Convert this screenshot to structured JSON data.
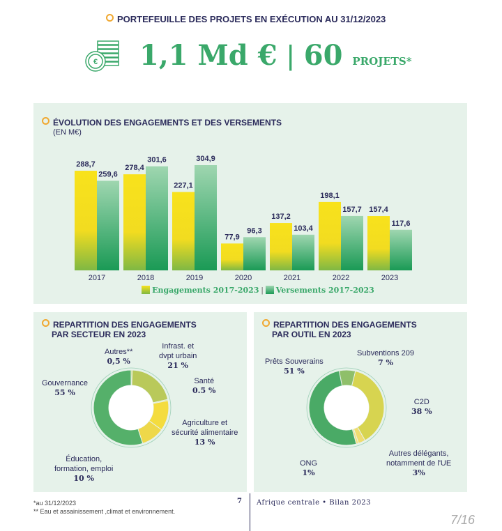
{
  "header": {
    "title": "PORTEFEUILLE DES PROJETS EN EXÉCUTION AU 31/12/2023",
    "amount": "1,1 Md €",
    "separator": "|",
    "count": "60",
    "count_unit": "PROJETS*"
  },
  "colors": {
    "green": "#3aa86a",
    "yellow": "#f5dd1e",
    "navy": "#2a2a5a",
    "accent": "#f0a830",
    "panel": "#e6f2ea"
  },
  "chart_data": [
    {
      "type": "bar",
      "title": "ÉVOLUTION DES ENGAGEMENTS ET DES VERSEMENTS",
      "subtitle": "(EN M€)",
      "categories": [
        "2017",
        "2018",
        "2019",
        "2020",
        "2021",
        "2022",
        "2023"
      ],
      "series": [
        {
          "name": "Engagements 2017-2023",
          "values": [
            288.7,
            278.4,
            227.1,
            77.9,
            137.2,
            198.1,
            157.4
          ],
          "labels": [
            "288,7",
            "278,4",
            "227,1",
            "77,9",
            "137,2",
            "198,1",
            "157,4"
          ]
        },
        {
          "name": "Versements 2017-2023",
          "values": [
            259.6,
            301.6,
            304.9,
            96.3,
            103.4,
            157.7,
            117.6
          ],
          "labels": [
            "259,6",
            "301,6",
            "304,9",
            "96,3",
            "103,4",
            "157,7",
            "117,6"
          ]
        }
      ],
      "ylim": [
        0,
        310
      ],
      "legend": "bottom"
    },
    {
      "type": "pie",
      "title_line1": "REPARTITION DES ENGAGEMENTS",
      "title_line2": "PAR SECTEUR EN 2023",
      "slices": [
        {
          "name": "Autres**",
          "value": 0.5,
          "label": "0,5 %"
        },
        {
          "name_line1": "Infrast. et",
          "name_line2": "dvpt urbain",
          "value": 21,
          "label": "21 %"
        },
        {
          "name": "Santé",
          "value": 0.5,
          "label": "0.5 %"
        },
        {
          "name_line1": "Agriculture et",
          "name_line2": "sécurité alimentaire",
          "value": 13,
          "label": "13 %"
        },
        {
          "name_line1": "Éducation,",
          "name_line2": "formation, emploi",
          "value": 10,
          "label": "10 %"
        },
        {
          "name": "Gouvernance",
          "value": 55,
          "label": "55 %"
        }
      ]
    },
    {
      "type": "pie",
      "title_line1": "REPARTITION DES ENGAGEMENTS",
      "title_line2": "PAR OUTIL EN 2023",
      "slices": [
        {
          "name": "Subventions 209",
          "value": 7,
          "label": "7 %"
        },
        {
          "name": "C2D",
          "value": 38,
          "label": "38 %"
        },
        {
          "name_line1": "Autres délégants,",
          "name_line2": "notamment de l'UE",
          "value": 3,
          "label": "3%"
        },
        {
          "name": "ONG",
          "value": 1,
          "label": "1%"
        },
        {
          "name": "Prêts Souverains",
          "value": 51,
          "label": "51 %"
        }
      ]
    }
  ],
  "footer": {
    "note1": "*au 31/12/2023",
    "note2": "** Eau et assainissement ,climat et environnement.",
    "page": "7",
    "publication": "Afrique centrale • Bilan 2023",
    "page_counter": "7/16"
  }
}
